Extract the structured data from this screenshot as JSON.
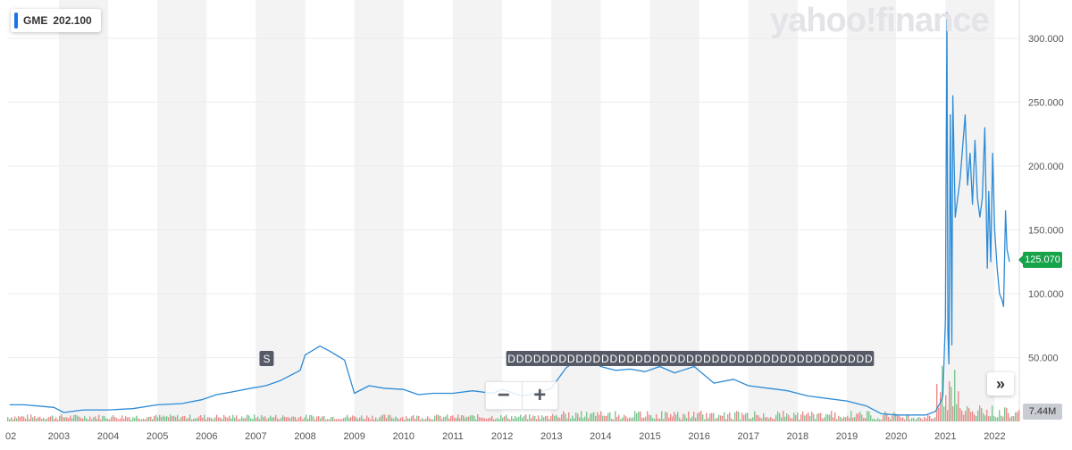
{
  "legend": {
    "symbol": "GME",
    "value": "202.100",
    "color": "#1a73e8"
  },
  "watermark": "yahoo!finance",
  "price_badge": "125.070",
  "volume_badge": "7.44M",
  "zoom": {
    "out_label": "−",
    "in_label": "+"
  },
  "scroll_button": "»",
  "colors": {
    "line": "#2d8bd6",
    "grid": "#ececec",
    "band": "#f3f3f3",
    "vol_up": "#7cc592",
    "vol_down": "#ea8b8b",
    "marker_bg": "#555a66",
    "marker_text": "#ffffff"
  },
  "chart_data": {
    "type": "line",
    "title": "",
    "xlabel": "",
    "ylabel": "",
    "xlim": [
      2001.95,
      2022.5
    ],
    "ylim": [
      0,
      330
    ],
    "x_ticks": [
      "02",
      "2003",
      "2004",
      "2005",
      "2006",
      "2007",
      "2008",
      "2009",
      "2010",
      "2011",
      "2012",
      "2013",
      "2014",
      "2015",
      "2016",
      "2017",
      "2018",
      "2019",
      "2020",
      "2021",
      "2022"
    ],
    "y_ticks": [
      "50.000",
      "100.000",
      "150.000",
      "200.000",
      "250.000",
      "300.000"
    ],
    "y_tick_values": [
      50,
      100,
      150,
      200,
      250,
      300
    ],
    "series": [
      {
        "symbol": "GME",
        "x": [
          2002.0,
          2002.3,
          2002.6,
          2002.9,
          2003.1,
          2003.5,
          2004.0,
          2004.5,
          2005.0,
          2005.5,
          2005.9,
          2006.2,
          2006.5,
          2006.9,
          2007.2,
          2007.5,
          2007.9,
          2008.0,
          2008.3,
          2008.5,
          2008.8,
          2009.0,
          2009.3,
          2009.6,
          2010.0,
          2010.3,
          2010.6,
          2011.0,
          2011.4,
          2011.8,
          2012.0,
          2012.4,
          2012.7,
          2013.0,
          2013.3,
          2013.6,
          2013.8,
          2014.0,
          2014.3,
          2014.6,
          2014.9,
          2015.2,
          2015.5,
          2015.9,
          2016.3,
          2016.7,
          2017.0,
          2017.4,
          2017.8,
          2018.2,
          2018.6,
          2019.0,
          2019.4,
          2019.7,
          2020.0,
          2020.3,
          2020.6,
          2020.8,
          2020.9,
          2020.95,
          2021.0,
          2021.03,
          2021.05,
          2021.07,
          2021.1,
          2021.13,
          2021.15,
          2021.2,
          2021.3,
          2021.4,
          2021.45,
          2021.5,
          2021.55,
          2021.6,
          2021.65,
          2021.7,
          2021.75,
          2021.8,
          2021.85,
          2021.88,
          2021.92,
          2021.96,
          2022.0,
          2022.05,
          2022.1,
          2022.15,
          2022.18,
          2022.22,
          2022.25,
          2022.3
        ],
        "values": [
          13,
          13,
          12,
          11,
          7,
          9,
          9,
          10,
          13,
          14,
          17,
          21,
          23,
          26,
          28,
          32,
          40,
          52,
          59,
          55,
          48,
          22,
          28,
          26,
          25,
          21,
          22,
          22,
          24,
          22,
          25,
          20,
          22,
          26,
          42,
          50,
          48,
          43,
          40,
          41,
          39,
          43,
          38,
          43,
          30,
          33,
          28,
          26,
          24,
          20,
          18,
          16,
          12,
          6,
          5,
          5,
          5,
          8,
          15,
          20,
          80,
          320,
          70,
          45,
          240,
          60,
          255,
          160,
          190,
          240,
          185,
          210,
          170,
          220,
          175,
          160,
          175,
          230,
          120,
          180,
          125,
          210,
          150,
          120,
          100,
          95,
          90,
          165,
          135,
          125
        ]
      }
    ],
    "markers": [
      {
        "label": "S",
        "x": 2007.2
      },
      {
        "labels": [
          "D",
          "D",
          "D",
          "D",
          "D",
          "D",
          "D",
          "D",
          "D",
          "D",
          "D",
          "D",
          "D",
          "D",
          "D",
          "D",
          "D",
          "D",
          "D",
          "D",
          "D",
          "D",
          "D",
          "D",
          "D",
          "D",
          "D",
          "D",
          "D",
          "D",
          "D",
          "D",
          "D",
          "D",
          "D",
          "D",
          "D",
          "D",
          "D",
          "D",
          "D",
          "D",
          "D"
        ],
        "x_start": 2012.1,
        "x_end": 2019.35
      }
    ],
    "grid": true,
    "legend": "top-left"
  }
}
